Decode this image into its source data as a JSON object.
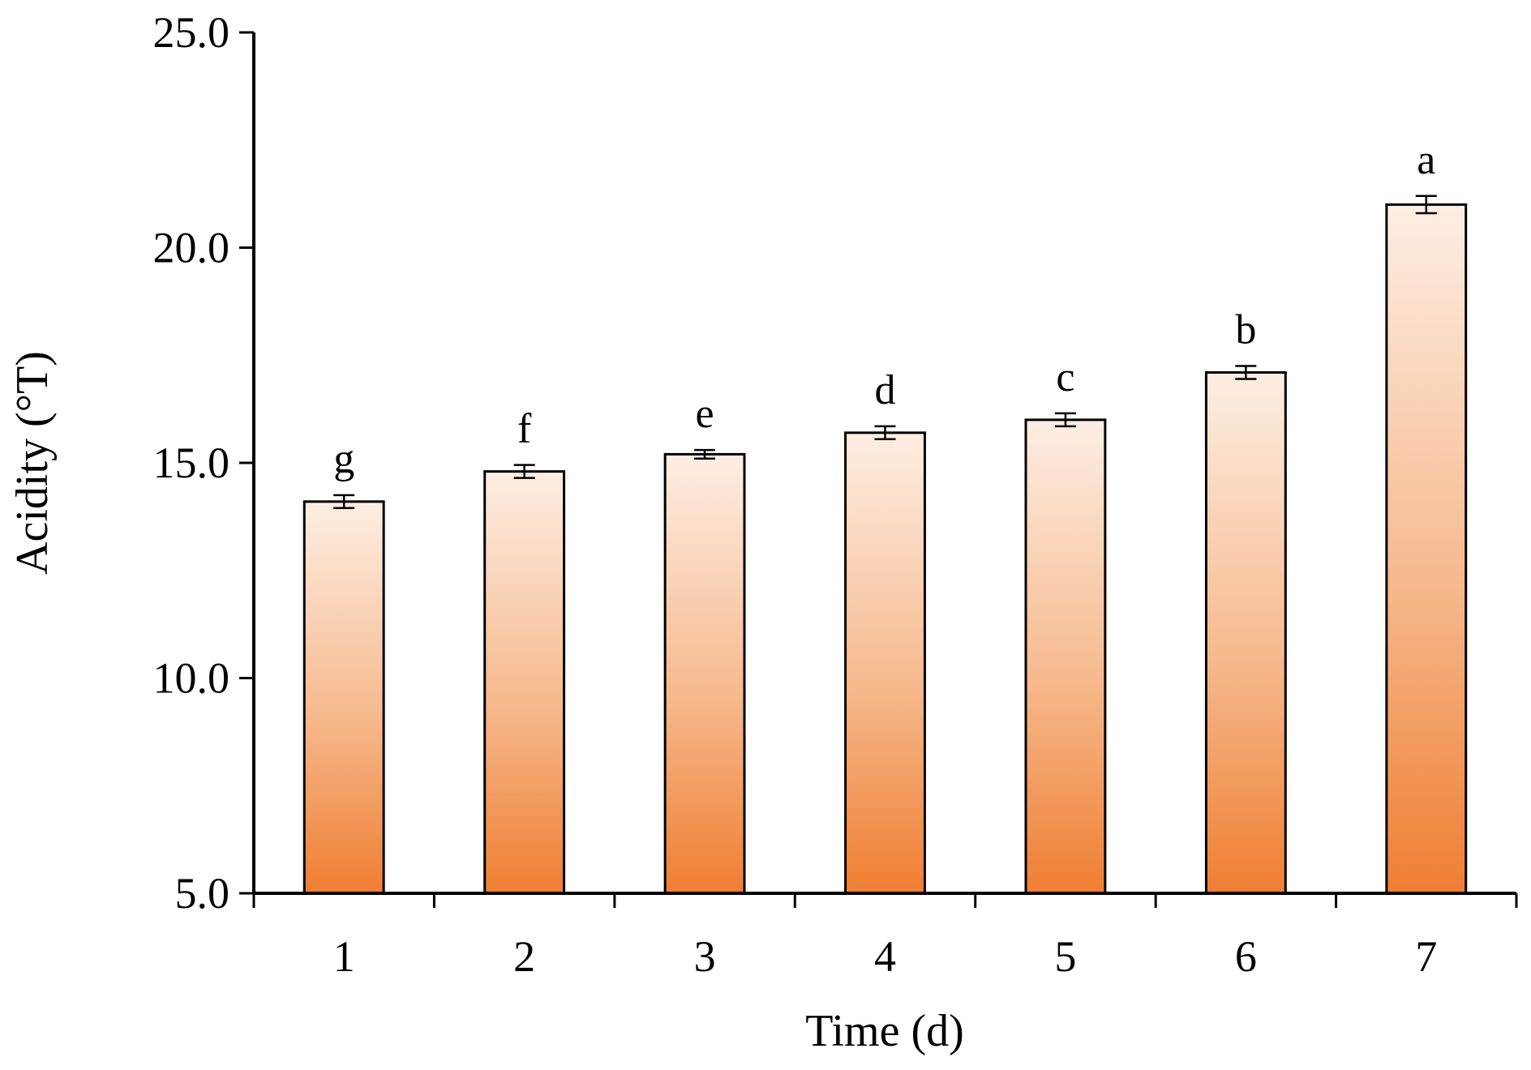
{
  "chart_data": {
    "type": "bar",
    "categories": [
      "1",
      "2",
      "3",
      "4",
      "5",
      "6",
      "7"
    ],
    "values": [
      14.1,
      14.8,
      15.2,
      15.7,
      16.0,
      17.1,
      21.0
    ],
    "errors": [
      0.15,
      0.15,
      0.1,
      0.15,
      0.15,
      0.15,
      0.2
    ],
    "significance": [
      "g",
      "f",
      "e",
      "d",
      "c",
      "b",
      "a"
    ],
    "title": "",
    "xlabel": "Time (d)",
    "ylabel": "Acidity (°T)",
    "ylim": [
      5.0,
      25.0
    ],
    "yticks": [
      "5.0",
      "10.0",
      "15.0",
      "20.0",
      "25.0"
    ],
    "ytick_values": [
      5,
      10,
      15,
      20,
      25
    ],
    "grid": false,
    "legend": "none",
    "colors": {
      "bar_top": "#fdeee3",
      "bar_bottom": "#ef7e32",
      "bar_outline": "#000000",
      "axis": "#000000"
    }
  }
}
